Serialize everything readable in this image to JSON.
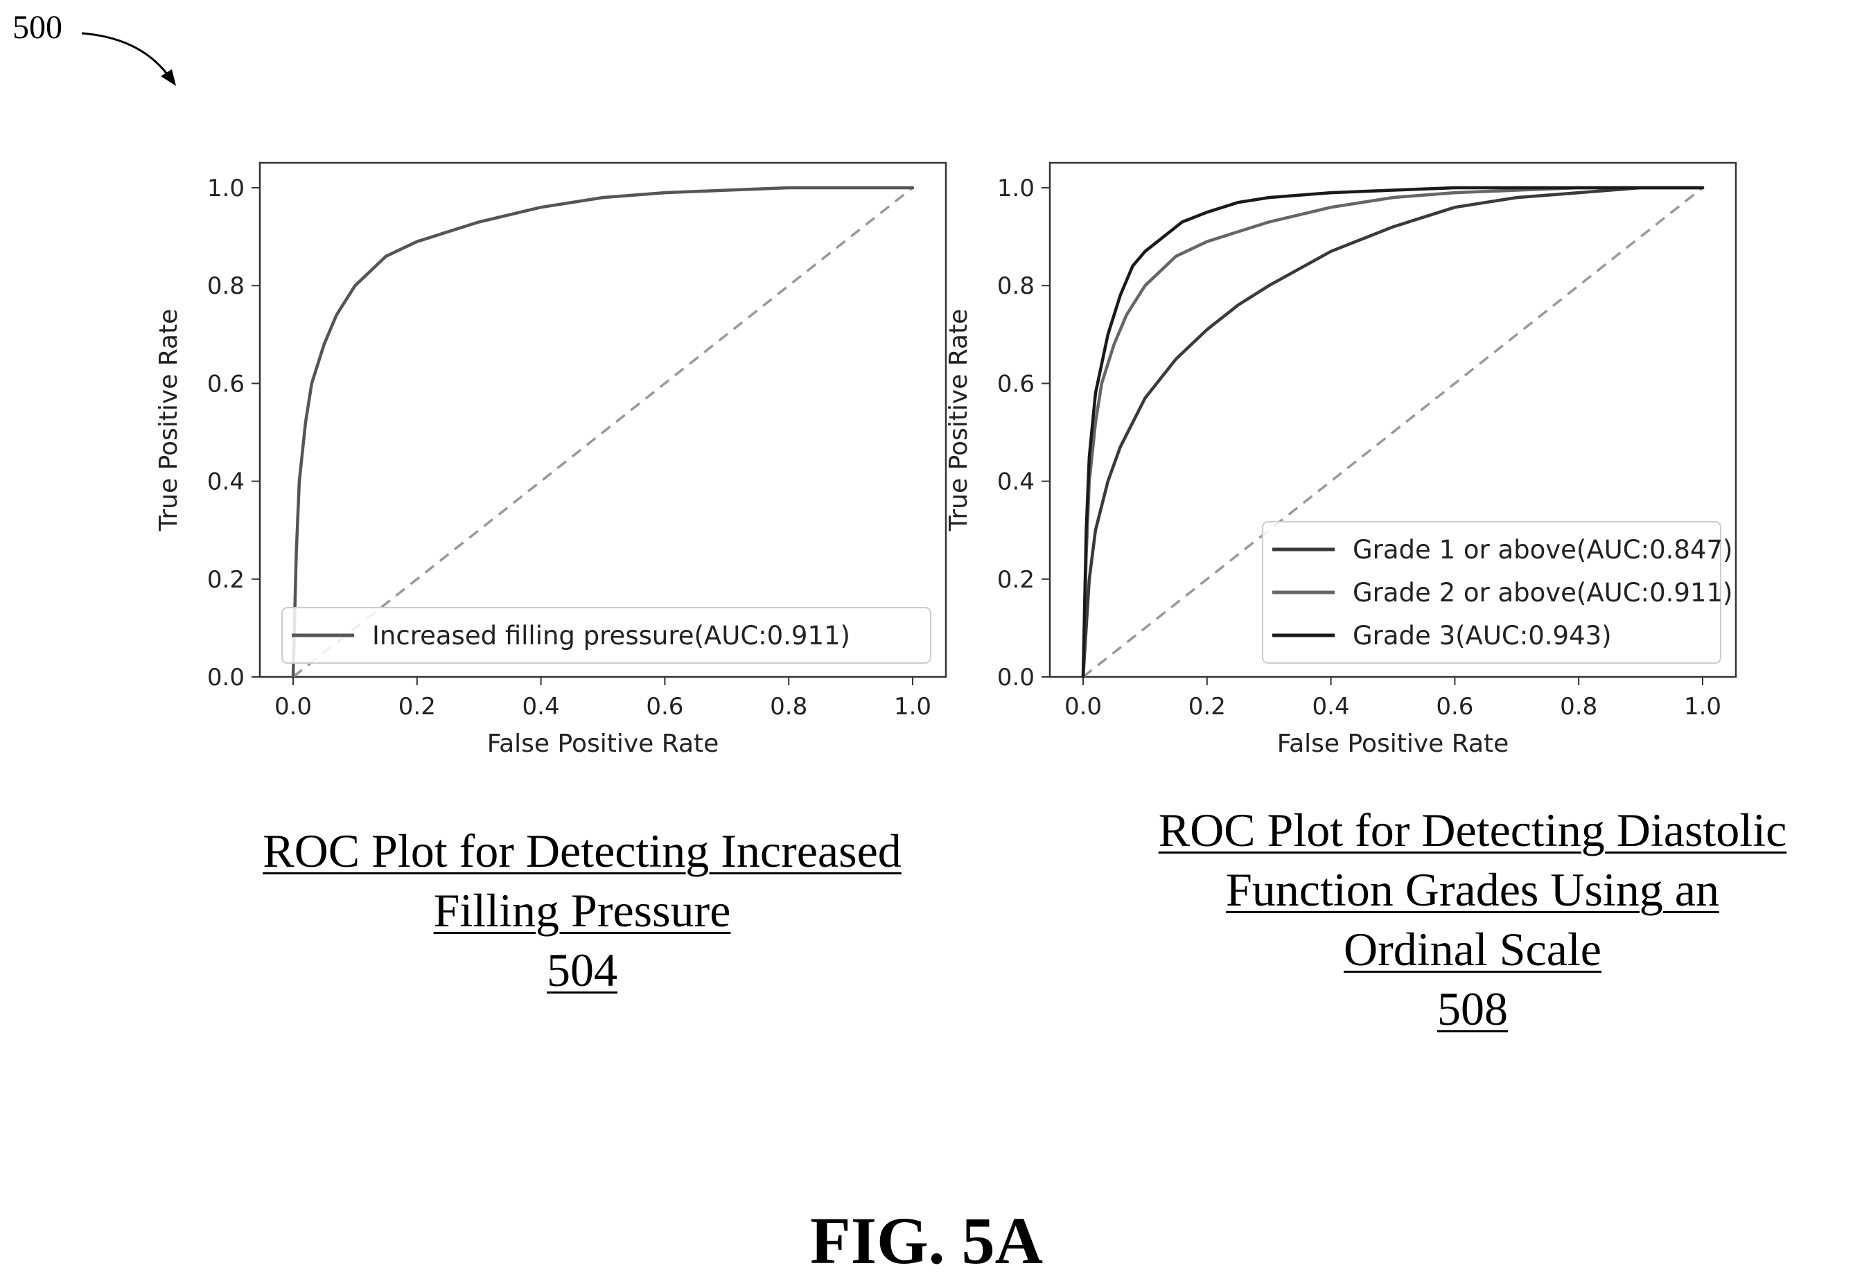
{
  "figure": {
    "ref_number": "500",
    "label": "FIG. 5A"
  },
  "chart_data": [
    {
      "type": "line",
      "xlabel": "False Positive Rate",
      "ylabel": "True Positive Rate",
      "xlim": [
        0.0,
        1.0
      ],
      "ylim": [
        0.0,
        1.0
      ],
      "xticks": [
        "0.0",
        "0.2",
        "0.4",
        "0.6",
        "0.8",
        "1.0"
      ],
      "yticks": [
        "0.0",
        "0.2",
        "0.4",
        "0.6",
        "0.8",
        "1.0"
      ],
      "legend_position": "lower-right",
      "grid": false,
      "caption_lines": [
        "ROC Plot for Detecting Increased",
        "Filling Pressure",
        "504"
      ],
      "series": [
        {
          "name": "Increased filling pressure(AUC:0.911)",
          "color": "#555555",
          "x": [
            0.0,
            0.005,
            0.01,
            0.02,
            0.03,
            0.05,
            0.07,
            0.1,
            0.15,
            0.2,
            0.25,
            0.3,
            0.4,
            0.5,
            0.6,
            0.7,
            0.8,
            0.9,
            1.0
          ],
          "y": [
            0.0,
            0.25,
            0.4,
            0.52,
            0.6,
            0.68,
            0.74,
            0.8,
            0.86,
            0.89,
            0.91,
            0.93,
            0.96,
            0.98,
            0.99,
            0.995,
            1.0,
            1.0,
            1.0
          ]
        }
      ],
      "diagonal": {
        "x": [
          0.0,
          1.0
        ],
        "y": [
          0.0,
          1.0
        ],
        "style": "dashed",
        "color": "#999999"
      }
    },
    {
      "type": "line",
      "xlabel": "False Positive Rate",
      "ylabel": "True Positive Rate",
      "xlim": [
        0.0,
        1.0
      ],
      "ylim": [
        0.0,
        1.0
      ],
      "xticks": [
        "0.0",
        "0.2",
        "0.4",
        "0.6",
        "0.8",
        "1.0"
      ],
      "yticks": [
        "0.0",
        "0.2",
        "0.4",
        "0.6",
        "0.8",
        "1.0"
      ],
      "legend_position": "lower-right",
      "grid": false,
      "caption_lines": [
        "ROC Plot for Detecting Diastolic",
        "Function Grades Using an",
        "Ordinal Scale",
        "508"
      ],
      "series": [
        {
          "name": "Grade 1 or above(AUC:0.847)",
          "color": "#3a3a3a",
          "x": [
            0.0,
            0.01,
            0.02,
            0.04,
            0.06,
            0.1,
            0.15,
            0.2,
            0.25,
            0.3,
            0.4,
            0.5,
            0.6,
            0.7,
            0.8,
            0.9,
            1.0
          ],
          "y": [
            0.0,
            0.2,
            0.3,
            0.4,
            0.47,
            0.57,
            0.65,
            0.71,
            0.76,
            0.8,
            0.87,
            0.92,
            0.96,
            0.98,
            0.99,
            1.0,
            1.0
          ]
        },
        {
          "name": "Grade 2 or above(AUC:0.911)",
          "color": "#666666",
          "x": [
            0.0,
            0.005,
            0.01,
            0.02,
            0.03,
            0.05,
            0.07,
            0.1,
            0.15,
            0.2,
            0.25,
            0.3,
            0.4,
            0.5,
            0.6,
            0.7,
            0.8,
            0.9,
            1.0
          ],
          "y": [
            0.0,
            0.25,
            0.4,
            0.52,
            0.6,
            0.68,
            0.74,
            0.8,
            0.86,
            0.89,
            0.91,
            0.93,
            0.96,
            0.98,
            0.99,
            0.995,
            1.0,
            1.0,
            1.0
          ]
        },
        {
          "name": "Grade 3(AUC:0.943)",
          "color": "#1a1a1a",
          "x": [
            0.0,
            0.005,
            0.01,
            0.02,
            0.04,
            0.06,
            0.08,
            0.1,
            0.13,
            0.16,
            0.2,
            0.25,
            0.3,
            0.4,
            0.5,
            0.6,
            0.8,
            1.0
          ],
          "y": [
            0.0,
            0.3,
            0.45,
            0.58,
            0.7,
            0.78,
            0.84,
            0.87,
            0.9,
            0.93,
            0.95,
            0.97,
            0.98,
            0.99,
            0.995,
            1.0,
            1.0,
            1.0
          ]
        }
      ],
      "diagonal": {
        "x": [
          0.0,
          1.0
        ],
        "y": [
          0.0,
          1.0
        ],
        "style": "dashed",
        "color": "#999999"
      }
    }
  ]
}
